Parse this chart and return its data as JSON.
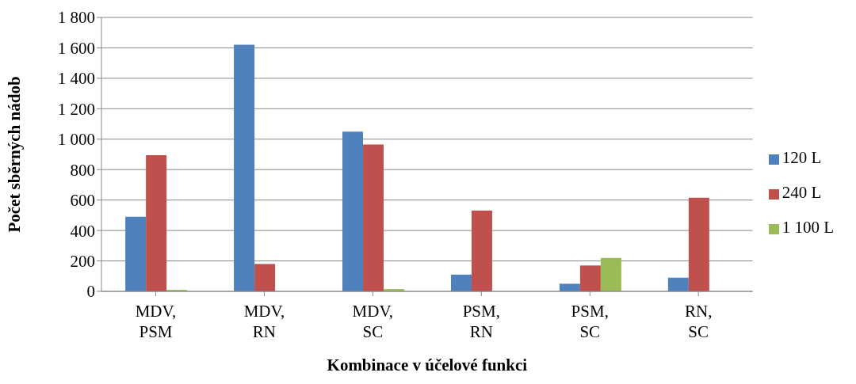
{
  "chart_data": {
    "type": "bar",
    "xlabel": "Kombinace v účelové funkci",
    "ylabel": "Počet sběrných nádob",
    "categories": [
      "MDV, PSM",
      "MDV, RN",
      "MDV, SC",
      "PSM, RN",
      "PSM, SC",
      "RN, SC"
    ],
    "series": [
      {
        "name": "120 L",
        "color": "#4f81bd",
        "values": [
          490,
          1620,
          1050,
          110,
          50,
          90
        ]
      },
      {
        "name": "240 L",
        "color": "#c0504d",
        "values": [
          895,
          180,
          965,
          530,
          170,
          615
        ]
      },
      {
        "name": "1 100 L",
        "color": "#9bbb59",
        "values": [
          10,
          0,
          15,
          0,
          220,
          0
        ]
      }
    ],
    "ylim": [
      0,
      1800
    ],
    "yticks": [
      0,
      200,
      400,
      600,
      800,
      {
        "value": 1000,
        "label": "1 000"
      },
      {
        "value": 1200,
        "label": "1 200"
      },
      {
        "value": 1400,
        "label": "1 400"
      },
      {
        "value": 1600,
        "label": "1 600"
      },
      {
        "value": 1800,
        "label": "1 800"
      }
    ],
    "grid": "y",
    "legend": "right"
  }
}
